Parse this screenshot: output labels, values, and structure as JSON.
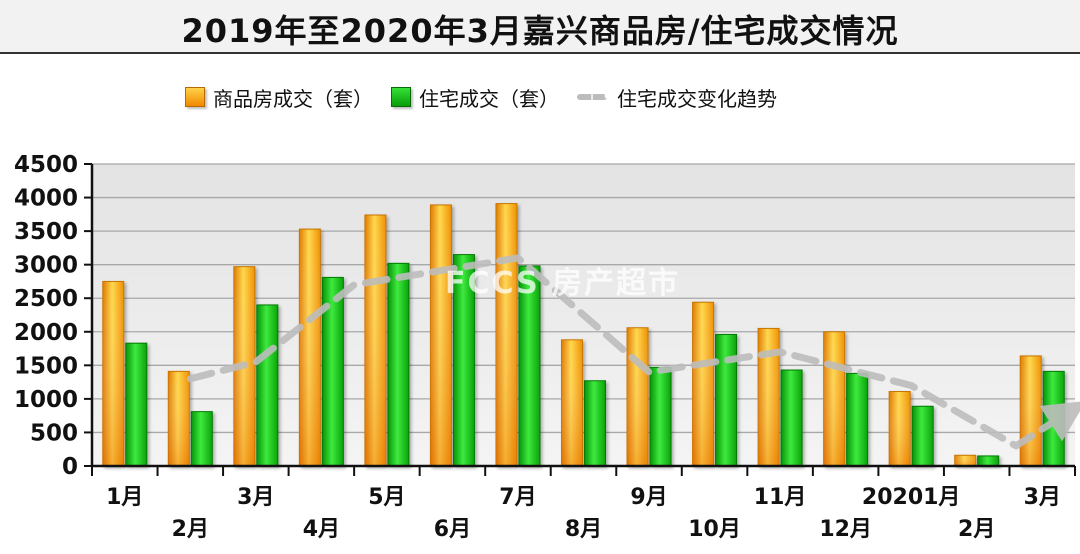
{
  "title": "2019年至2020年3月嘉兴商品房/住宅成交情况",
  "legend": {
    "commercial": "商品房成交（套）",
    "residential": "住宅成交（套）",
    "trend": "住宅成交变化趋势"
  },
  "watermark": "FCCS 房产超市",
  "colors": {
    "commercial": "#f5a300",
    "residential": "#12b812",
    "trend": "#bdbdbd"
  },
  "chart_data": {
    "type": "bar",
    "categories": [
      "1月",
      "2月",
      "3月",
      "4月",
      "5月",
      "6月",
      "7月",
      "8月",
      "9月",
      "10月",
      "11月",
      "12月",
      "20201月",
      "2月",
      "3月"
    ],
    "series": [
      {
        "name": "商品房成交（套）",
        "values": [
          2750,
          1410,
          2970,
          3530,
          3740,
          3890,
          3910,
          1880,
          2060,
          2440,
          2050,
          2000,
          1110,
          160,
          1640
        ]
      },
      {
        "name": "住宅成交（套）",
        "values": [
          1830,
          810,
          2400,
          2810,
          3020,
          3150,
          2980,
          1270,
          1470,
          1960,
          1430,
          1380,
          890,
          150,
          1410
        ]
      }
    ],
    "trend": {
      "name": "住宅成交变化趋势",
      "points": [
        [
          1,
          1300
        ],
        [
          2,
          1550
        ],
        [
          3.5,
          2700
        ],
        [
          6,
          3100
        ],
        [
          8,
          1400
        ],
        [
          10,
          1700
        ],
        [
          12,
          1200
        ],
        [
          13.6,
          300
        ],
        [
          14.4,
          800
        ]
      ]
    },
    "ylim": [
      0,
      4500
    ],
    "yticks": [
      0,
      500,
      1000,
      1500,
      2000,
      2500,
      3000,
      3500,
      4000,
      4500
    ],
    "grid": true,
    "legend_position": "top"
  }
}
